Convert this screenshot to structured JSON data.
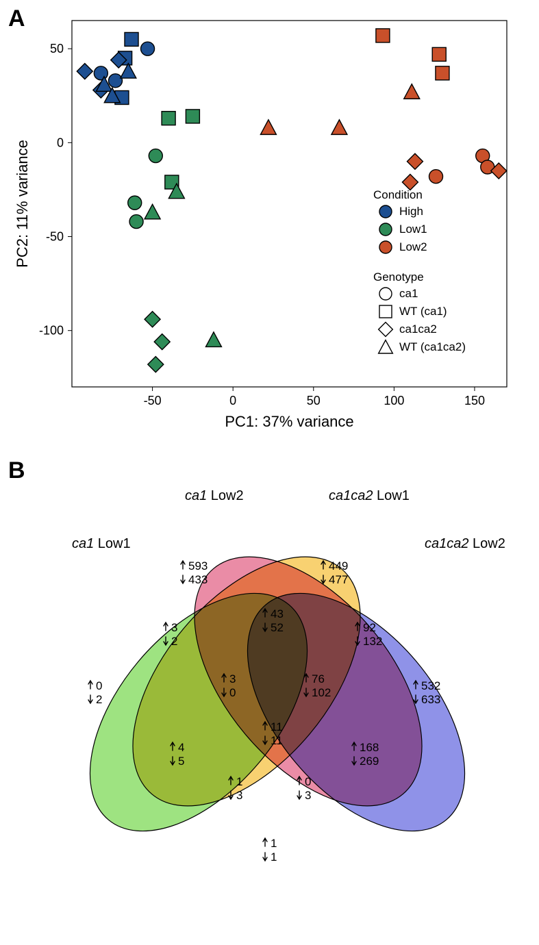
{
  "panelA": {
    "label": "A",
    "xlabel": "PC1: 37% variance",
    "ylabel": "PC2: 11% variance",
    "xlim": [
      -100,
      170
    ],
    "ylim": [
      -130,
      65
    ],
    "xticks": [
      -50,
      0,
      50,
      100,
      150
    ],
    "yticks": [
      -100,
      -50,
      0,
      50
    ],
    "axis_fontsize": 22,
    "tick_fontsize": 18,
    "legend_title_condition": "Condition",
    "legend_title_genotype": "Genotype",
    "conditions": [
      {
        "name": "High",
        "color": "#1d4f91"
      },
      {
        "name": "Low1",
        "color": "#2e8b57"
      },
      {
        "name": "Low2",
        "color": "#c9502a"
      }
    ],
    "genotypes": [
      {
        "name": "ca1",
        "shape": "circle"
      },
      {
        "name": "WT (ca1)",
        "shape": "square"
      },
      {
        "name": "ca1ca2",
        "shape": "diamond"
      },
      {
        "name": "WT (ca1ca2)",
        "shape": "triangle"
      }
    ],
    "legend_fontsize": 17,
    "marker_outline": "#000000",
    "marker_size": 10,
    "background": "#ffffff",
    "panel_border": "#000000",
    "points": [
      {
        "x": -82,
        "y": 37,
        "cond": "High",
        "geno": "circle"
      },
      {
        "x": -53,
        "y": 50,
        "cond": "High",
        "geno": "circle"
      },
      {
        "x": -73,
        "y": 33,
        "cond": "High",
        "geno": "circle"
      },
      {
        "x": -63,
        "y": 55,
        "cond": "High",
        "geno": "square"
      },
      {
        "x": -67,
        "y": 45,
        "cond": "High",
        "geno": "square"
      },
      {
        "x": -69,
        "y": 24,
        "cond": "High",
        "geno": "square"
      },
      {
        "x": -92,
        "y": 38,
        "cond": "High",
        "geno": "diamond"
      },
      {
        "x": -71,
        "y": 44,
        "cond": "High",
        "geno": "diamond"
      },
      {
        "x": -82,
        "y": 28,
        "cond": "High",
        "geno": "diamond"
      },
      {
        "x": -80,
        "y": 31,
        "cond": "High",
        "geno": "triangle"
      },
      {
        "x": -75,
        "y": 25,
        "cond": "High",
        "geno": "triangle"
      },
      {
        "x": -65,
        "y": 38,
        "cond": "High",
        "geno": "triangle"
      },
      {
        "x": -48,
        "y": -7,
        "cond": "Low1",
        "geno": "circle"
      },
      {
        "x": -61,
        "y": -32,
        "cond": "Low1",
        "geno": "circle"
      },
      {
        "x": -60,
        "y": -42,
        "cond": "Low1",
        "geno": "circle"
      },
      {
        "x": -40,
        "y": 13,
        "cond": "Low1",
        "geno": "square"
      },
      {
        "x": -25,
        "y": 14,
        "cond": "Low1",
        "geno": "square"
      },
      {
        "x": -38,
        "y": -21,
        "cond": "Low1",
        "geno": "square"
      },
      {
        "x": -50,
        "y": -94,
        "cond": "Low1",
        "geno": "diamond"
      },
      {
        "x": -44,
        "y": -106,
        "cond": "Low1",
        "geno": "diamond"
      },
      {
        "x": -48,
        "y": -118,
        "cond": "Low1",
        "geno": "diamond"
      },
      {
        "x": -35,
        "y": -26,
        "cond": "Low1",
        "geno": "triangle"
      },
      {
        "x": -50,
        "y": -37,
        "cond": "Low1",
        "geno": "triangle"
      },
      {
        "x": -12,
        "y": -105,
        "cond": "Low1",
        "geno": "triangle"
      },
      {
        "x": 126,
        "y": -18,
        "cond": "Low2",
        "geno": "circle"
      },
      {
        "x": 155,
        "y": -7,
        "cond": "Low2",
        "geno": "circle"
      },
      {
        "x": 158,
        "y": -13,
        "cond": "Low2",
        "geno": "circle"
      },
      {
        "x": 93,
        "y": 57,
        "cond": "Low2",
        "geno": "square"
      },
      {
        "x": 128,
        "y": 47,
        "cond": "Low2",
        "geno": "square"
      },
      {
        "x": 130,
        "y": 37,
        "cond": "Low2",
        "geno": "square"
      },
      {
        "x": 110,
        "y": -21,
        "cond": "Low2",
        "geno": "diamond"
      },
      {
        "x": 113,
        "y": -10,
        "cond": "Low2",
        "geno": "diamond"
      },
      {
        "x": 165,
        "y": -15,
        "cond": "Low2",
        "geno": "diamond"
      },
      {
        "x": 22,
        "y": 8,
        "cond": "Low2",
        "geno": "triangle"
      },
      {
        "x": 66,
        "y": 8,
        "cond": "Low2",
        "geno": "triangle"
      },
      {
        "x": 111,
        "y": 27,
        "cond": "Low2",
        "geno": "triangle"
      }
    ]
  },
  "panelB": {
    "label": "B",
    "set_labels": [
      {
        "italic": "ca1",
        "rest": " Low1"
      },
      {
        "italic": "ca1",
        "rest": "  Low2"
      },
      {
        "italic": "ca1ca2",
        "rest": "  Low1"
      },
      {
        "italic": "ca1ca2",
        "rest": "  Low2"
      }
    ],
    "ellipse_colors": {
      "A": "#7ed957",
      "B": "#f5c242",
      "C": "#e36588",
      "D": "#6a6ee0"
    },
    "ellipse_opacity": 0.75,
    "ellipse_stroke": "#000000",
    "label_fontsize": 20,
    "value_fontsize": 17,
    "regions": {
      "A_only": {
        "up": 0,
        "down": 2
      },
      "B_only": {
        "up": 593,
        "down": 433
      },
      "C_only": {
        "up": 449,
        "down": 477
      },
      "D_only": {
        "up": 532,
        "down": 633
      },
      "AB": {
        "up": 3,
        "down": 2
      },
      "BC": {
        "up": 43,
        "down": 52
      },
      "CD": {
        "up": 92,
        "down": 132
      },
      "AC": {
        "up": 4,
        "down": 5
      },
      "BD": {
        "up": 168,
        "down": 269
      },
      "AD": {
        "up": 1,
        "down": 1
      },
      "ABC": {
        "up": 3,
        "down": 0
      },
      "BCD": {
        "up": 76,
        "down": 102
      },
      "ACD": {
        "up": 1,
        "down": 3
      },
      "ABD": {
        "up": 0,
        "down": 3
      },
      "ABCD": {
        "up": 11,
        "down": 11
      }
    }
  }
}
